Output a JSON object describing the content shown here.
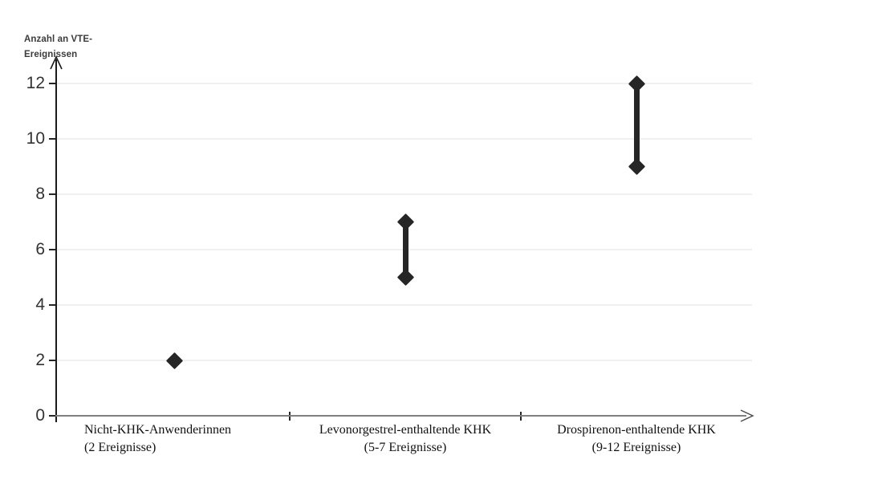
{
  "chart_data": {
    "type": "scatter",
    "variant": "high-low-range",
    "title": "",
    "ylabel": "Anzahl an VTE-Ereignissen",
    "ylabel_lines": [
      "Anzahl an VTE-",
      "Ereignissen"
    ],
    "xlabel": "",
    "yticks": [
      0,
      2,
      4,
      6,
      8,
      10,
      12
    ],
    "ylim": [
      0,
      13
    ],
    "grid": "horizontal-light",
    "legend": "none",
    "marker": "diamond",
    "marker_color": "#262626",
    "gridline_color": "#f0f0f0",
    "y_axis_color": "#1a1a1a",
    "x_axis_color": "#808080",
    "categories": [
      {
        "label": "Nicht-KHK-Anwenderinnen",
        "sublabel": "(2 Ereignisse)",
        "low": 2,
        "high": 2,
        "label_align": "left"
      },
      {
        "label": "Levonorgestrel-enthaltende KHK",
        "sublabel": "(5-7 Ereignisse)",
        "low": 5,
        "high": 7,
        "label_align": "center"
      },
      {
        "label": "Drospirenon-enthaltende KHK",
        "sublabel": "(9-12 Ereignisse)",
        "low": 9,
        "high": 12,
        "label_align": "center"
      }
    ]
  }
}
